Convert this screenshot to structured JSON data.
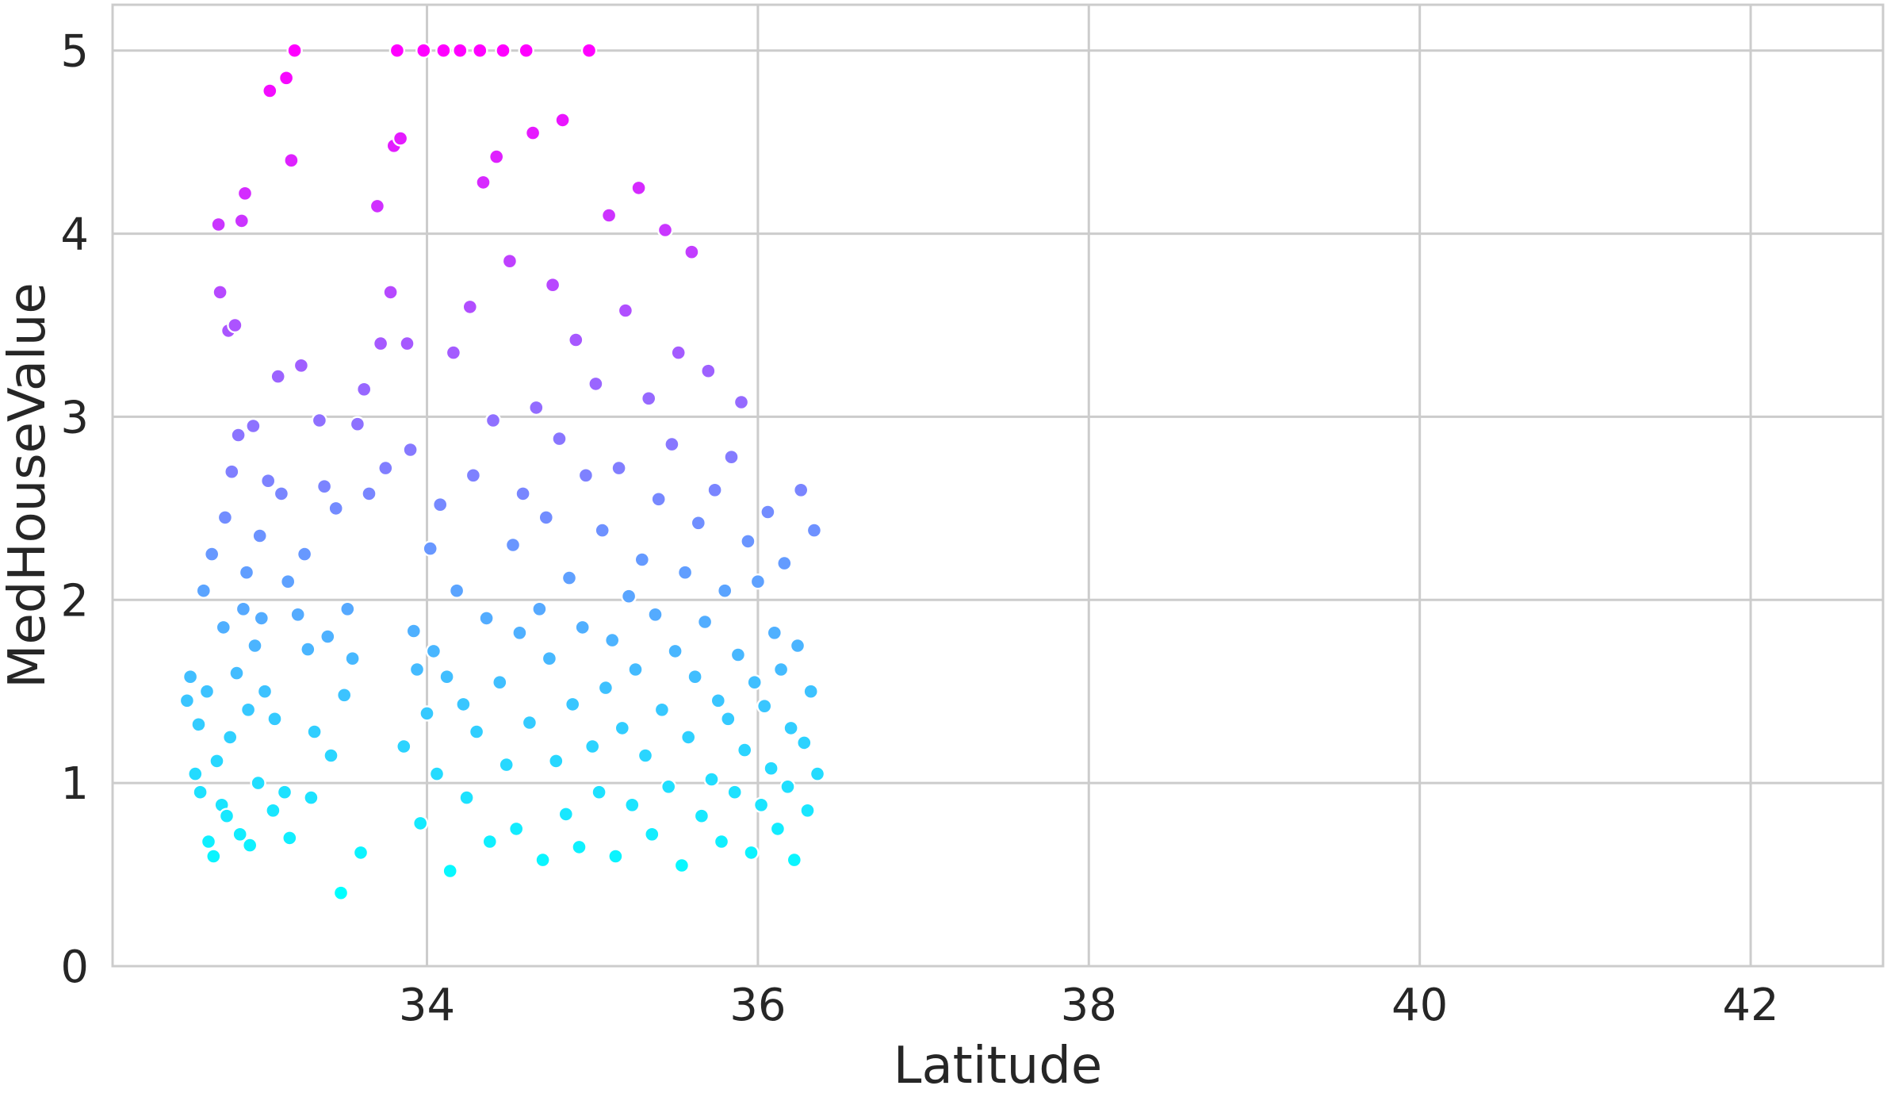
{
  "chart_data": {
    "type": "scatter",
    "title": "",
    "xlabel": "Latitude",
    "ylabel": "MedHouseValue",
    "xlim": [
      32.1,
      42.8
    ],
    "ylim": [
      0,
      5.25
    ],
    "xticks": [
      34,
      36,
      38,
      40,
      42
    ],
    "yticks": [
      0,
      1,
      2,
      3,
      4,
      5
    ],
    "x_tick_labels": [
      "34",
      "36",
      "38",
      "40",
      "42"
    ],
    "y_tick_labels": [
      "0",
      "1",
      "2",
      "3",
      "4",
      "5"
    ],
    "grid": true,
    "legend": "none",
    "colormap": "cool",
    "color_by": "MedHouseValue",
    "colormap_low": "#00ffff",
    "colormap_high": "#ff00ff",
    "points": [
      [
        32.55,
        1.45
      ],
      [
        32.57,
        1.58
      ],
      [
        32.6,
        1.05
      ],
      [
        32.62,
        1.32
      ],
      [
        32.63,
        0.95
      ],
      [
        32.65,
        2.05
      ],
      [
        32.67,
        1.5
      ],
      [
        32.68,
        0.68
      ],
      [
        32.7,
        2.25
      ],
      [
        32.71,
        0.6
      ],
      [
        32.73,
        1.12
      ],
      [
        32.74,
        4.05
      ],
      [
        32.75,
        3.68
      ],
      [
        32.76,
        0.88
      ],
      [
        32.77,
        1.85
      ],
      [
        32.78,
        2.45
      ],
      [
        32.79,
        0.82
      ],
      [
        32.8,
        3.47
      ],
      [
        32.81,
        1.25
      ],
      [
        32.82,
        2.7
      ],
      [
        32.84,
        3.5
      ],
      [
        32.85,
        1.6
      ],
      [
        32.86,
        2.9
      ],
      [
        32.87,
        0.72
      ],
      [
        32.88,
        4.07
      ],
      [
        32.89,
        1.95
      ],
      [
        32.9,
        4.22
      ],
      [
        32.91,
        2.15
      ],
      [
        32.92,
        1.4
      ],
      [
        32.93,
        0.66
      ],
      [
        32.95,
        2.95
      ],
      [
        32.96,
        1.75
      ],
      [
        32.98,
        1.0
      ],
      [
        32.99,
        2.35
      ],
      [
        33.0,
        1.9
      ],
      [
        33.02,
        1.5
      ],
      [
        33.04,
        2.65
      ],
      [
        33.05,
        4.78
      ],
      [
        33.07,
        0.85
      ],
      [
        33.08,
        1.35
      ],
      [
        33.1,
        3.22
      ],
      [
        33.12,
        2.58
      ],
      [
        33.14,
        0.95
      ],
      [
        33.15,
        4.85
      ],
      [
        33.16,
        2.1
      ],
      [
        33.17,
        0.7
      ],
      [
        33.18,
        4.4
      ],
      [
        33.2,
        5.0
      ],
      [
        33.22,
        1.92
      ],
      [
        33.24,
        3.28
      ],
      [
        33.26,
        2.25
      ],
      [
        33.28,
        1.73
      ],
      [
        33.3,
        0.92
      ],
      [
        33.32,
        1.28
      ],
      [
        33.35,
        2.98
      ],
      [
        33.38,
        2.62
      ],
      [
        33.4,
        1.8
      ],
      [
        33.42,
        1.15
      ],
      [
        33.45,
        2.5
      ],
      [
        33.48,
        0.4
      ],
      [
        33.5,
        1.48
      ],
      [
        33.52,
        1.95
      ],
      [
        33.55,
        1.68
      ],
      [
        33.58,
        2.96
      ],
      [
        33.6,
        0.62
      ],
      [
        33.62,
        3.15
      ],
      [
        33.65,
        2.58
      ],
      [
        33.7,
        4.15
      ],
      [
        33.72,
        3.4
      ],
      [
        33.75,
        2.72
      ],
      [
        33.78,
        3.68
      ],
      [
        33.8,
        4.48
      ],
      [
        33.82,
        5.0
      ],
      [
        33.84,
        4.52
      ],
      [
        33.86,
        1.2
      ],
      [
        33.88,
        3.4
      ],
      [
        33.9,
        2.82
      ],
      [
        33.92,
        1.83
      ],
      [
        33.94,
        1.62
      ],
      [
        33.96,
        0.78
      ],
      [
        33.98,
        5.0
      ],
      [
        34.0,
        1.38
      ],
      [
        34.02,
        2.28
      ],
      [
        34.04,
        1.72
      ],
      [
        34.06,
        1.05
      ],
      [
        34.08,
        2.52
      ],
      [
        34.1,
        5.0
      ],
      [
        34.12,
        1.58
      ],
      [
        34.14,
        0.52
      ],
      [
        34.16,
        3.35
      ],
      [
        34.18,
        2.05
      ],
      [
        34.2,
        5.0
      ],
      [
        34.22,
        1.43
      ],
      [
        34.24,
        0.92
      ],
      [
        34.26,
        3.6
      ],
      [
        34.28,
        2.68
      ],
      [
        34.3,
        1.28
      ],
      [
        34.32,
        5.0
      ],
      [
        34.34,
        4.28
      ],
      [
        34.36,
        1.9
      ],
      [
        34.38,
        0.68
      ],
      [
        34.4,
        2.98
      ],
      [
        34.42,
        4.42
      ],
      [
        34.44,
        1.55
      ],
      [
        34.46,
        5.0
      ],
      [
        34.48,
        1.1
      ],
      [
        34.5,
        3.85
      ],
      [
        34.52,
        2.3
      ],
      [
        34.54,
        0.75
      ],
      [
        34.56,
        1.82
      ],
      [
        34.58,
        2.58
      ],
      [
        34.6,
        5.0
      ],
      [
        34.62,
        1.33
      ],
      [
        34.64,
        4.55
      ],
      [
        34.66,
        3.05
      ],
      [
        34.68,
        1.95
      ],
      [
        34.7,
        0.58
      ],
      [
        34.72,
        2.45
      ],
      [
        34.74,
        1.68
      ],
      [
        34.76,
        3.72
      ],
      [
        34.78,
        1.12
      ],
      [
        34.8,
        2.88
      ],
      [
        34.82,
        4.62
      ],
      [
        34.84,
        0.83
      ],
      [
        34.86,
        2.12
      ],
      [
        34.88,
        1.43
      ],
      [
        34.9,
        3.42
      ],
      [
        34.92,
        0.65
      ],
      [
        34.94,
        1.85
      ],
      [
        34.96,
        2.68
      ],
      [
        34.98,
        5.0
      ],
      [
        35.0,
        1.2
      ],
      [
        35.02,
        3.18
      ],
      [
        35.04,
        0.95
      ],
      [
        35.06,
        2.38
      ],
      [
        35.08,
        1.52
      ],
      [
        35.1,
        4.1
      ],
      [
        35.12,
        1.78
      ],
      [
        35.14,
        0.6
      ],
      [
        35.16,
        2.72
      ],
      [
        35.18,
        1.3
      ],
      [
        35.2,
        3.58
      ],
      [
        35.22,
        2.02
      ],
      [
        35.24,
        0.88
      ],
      [
        35.26,
        1.62
      ],
      [
        35.28,
        4.25
      ],
      [
        35.3,
        2.22
      ],
      [
        35.32,
        1.15
      ],
      [
        35.34,
        3.1
      ],
      [
        35.36,
        0.72
      ],
      [
        35.38,
        1.92
      ],
      [
        35.4,
        2.55
      ],
      [
        35.42,
        1.4
      ],
      [
        35.44,
        4.02
      ],
      [
        35.46,
        0.98
      ],
      [
        35.48,
        2.85
      ],
      [
        35.5,
        1.72
      ],
      [
        35.52,
        3.35
      ],
      [
        35.54,
        0.55
      ],
      [
        35.56,
        2.15
      ],
      [
        35.58,
        1.25
      ],
      [
        35.6,
        3.9
      ],
      [
        35.62,
        1.58
      ],
      [
        35.64,
        2.42
      ],
      [
        35.66,
        0.82
      ],
      [
        35.68,
        1.88
      ],
      [
        35.7,
        3.25
      ],
      [
        35.72,
        1.02
      ],
      [
        35.74,
        2.6
      ],
      [
        35.76,
        1.45
      ],
      [
        35.78,
        0.68
      ],
      [
        35.8,
        2.05
      ],
      [
        35.82,
        1.35
      ],
      [
        35.84,
        2.78
      ],
      [
        35.86,
        0.95
      ],
      [
        35.88,
        1.7
      ],
      [
        35.9,
        3.08
      ],
      [
        35.92,
        1.18
      ],
      [
        35.94,
        2.32
      ],
      [
        35.96,
        0.62
      ],
      [
        35.98,
        1.55
      ],
      [
        36.0,
        2.1
      ],
      [
        36.02,
        0.88
      ],
      [
        36.04,
        1.42
      ],
      [
        36.06,
        2.48
      ],
      [
        36.08,
        1.08
      ],
      [
        36.1,
        1.82
      ],
      [
        36.12,
        0.75
      ],
      [
        36.14,
        1.62
      ],
      [
        36.16,
        2.2
      ],
      [
        36.18,
        0.98
      ],
      [
        36.2,
        1.3
      ],
      [
        36.22,
        0.58
      ],
      [
        36.24,
        1.75
      ],
      [
        36.26,
        2.6
      ],
      [
        36.28,
        1.22
      ],
      [
        36.3,
        0.85
      ],
      [
        36.32,
        1.5
      ],
      [
        36.34,
        2.38
      ],
      [
        36.36,
        1.05
      ]
    ]
  }
}
